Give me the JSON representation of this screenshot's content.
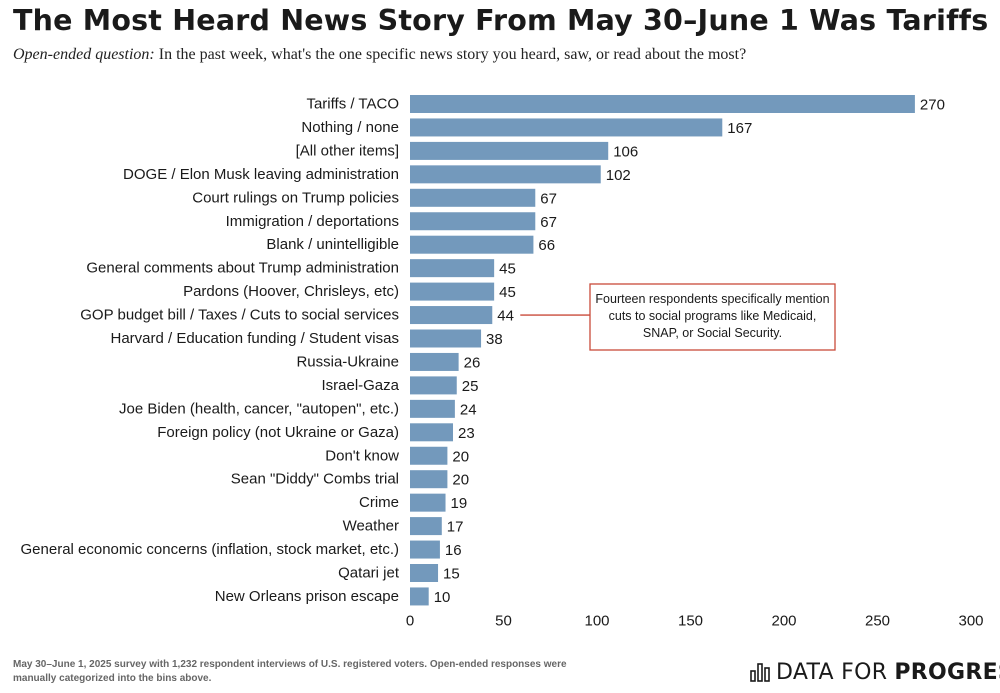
{
  "title": "The Most Heard News Story From May 30–June 1 Was Tariffs",
  "subtitle": {
    "question_label": "Open-ended question:",
    "question_text": "In the past week, what's the one specific news story you heard, saw, or read about the most?"
  },
  "chart_data": {
    "type": "bar",
    "orientation": "horizontal",
    "categories": [
      "Tariffs / TACO",
      "Nothing / none",
      "[All other items]",
      "DOGE / Elon Musk leaving administration",
      "Court rulings on Trump policies",
      "Immigration / deportations",
      "Blank / unintelligible",
      "General comments about Trump administration",
      "Pardons (Hoover, Chrisleys, etc)",
      "GOP budget bill / Taxes / Cuts to social services",
      "Harvard / Education funding / Student visas",
      "Russia-Ukraine",
      "Israel-Gaza",
      "Joe Biden (health, cancer, \"autopen\", etc.)",
      "Foreign policy (not Ukraine or Gaza)",
      "Don't know",
      "Sean \"Diddy\" Combs trial",
      "Crime",
      "Weather",
      "General economic concerns (inflation, stock market, etc.)",
      "Qatari jet",
      "New Orleans prison escape"
    ],
    "values": [
      270,
      167,
      106,
      102,
      67,
      67,
      66,
      45,
      45,
      44,
      38,
      26,
      25,
      24,
      23,
      20,
      20,
      19,
      17,
      16,
      15,
      10
    ],
    "xlim": [
      0,
      300
    ],
    "xticks": [
      0,
      50,
      100,
      150,
      200,
      250,
      300
    ],
    "bar_color": "#7399bc",
    "grid": false,
    "annotation": {
      "category": "GOP budget bill / Taxes / Cuts to social services",
      "lines": [
        "Fourteen respondents specifically mention",
        "cuts to social programs like Medicaid,",
        "SNAP, or Social Security."
      ],
      "color": "#c94a3a"
    }
  },
  "footnote": "May 30–June 1, 2025 survey with 1,232 respondent interviews of U.S. registered voters. Open-ended responses were manually categorized into the bins above.",
  "brand": {
    "light": "DATA FOR",
    "bold": "PROGRESS",
    "icon": "bar-chart-logo-icon"
  }
}
